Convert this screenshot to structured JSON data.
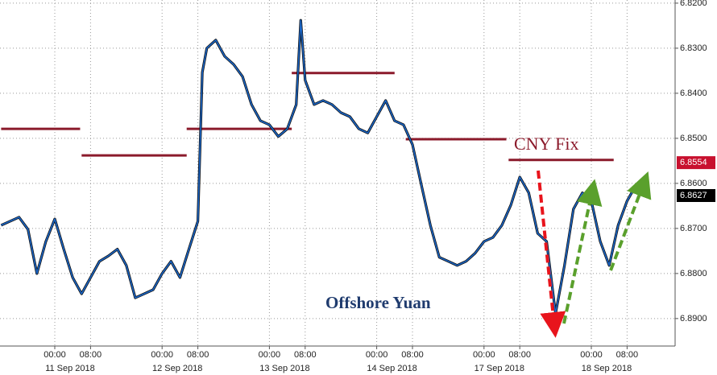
{
  "chart_data": {
    "type": "line",
    "annotations": {
      "series_label": "Offshore Yuan",
      "fix_label": "CNY Fix"
    },
    "x": [
      "2018-09-10 12:00",
      "2018-09-10 14:00",
      "2018-09-10 16:00",
      "2018-09-10 18:00",
      "2018-09-10 20:00",
      "2018-09-10 22:00",
      "2018-09-11 00:00",
      "2018-09-11 02:00",
      "2018-09-11 04:00",
      "2018-09-11 06:00",
      "2018-09-11 08:00",
      "2018-09-11 10:00",
      "2018-09-11 12:00",
      "2018-09-11 14:00",
      "2018-09-11 16:00",
      "2018-09-11 18:00",
      "2018-09-11 20:00",
      "2018-09-11 22:00",
      "2018-09-12 00:00",
      "2018-09-12 02:00",
      "2018-09-12 04:00",
      "2018-09-12 06:00",
      "2018-09-12 08:00",
      "2018-09-12 09:00",
      "2018-09-12 10:00",
      "2018-09-12 12:00",
      "2018-09-12 14:00",
      "2018-09-12 16:00",
      "2018-09-12 18:00",
      "2018-09-12 20:00",
      "2018-09-12 22:00",
      "2018-09-13 00:00",
      "2018-09-13 02:00",
      "2018-09-13 04:00",
      "2018-09-13 06:00",
      "2018-09-13 07:00",
      "2018-09-13 08:00",
      "2018-09-13 10:00",
      "2018-09-13 12:00",
      "2018-09-13 14:00",
      "2018-09-13 16:00",
      "2018-09-13 18:00",
      "2018-09-13 20:00",
      "2018-09-13 22:00",
      "2018-09-14 00:00",
      "2018-09-14 02:00",
      "2018-09-14 04:00",
      "2018-09-14 06:00",
      "2018-09-14 08:00",
      "2018-09-14 10:00",
      "2018-09-14 12:00",
      "2018-09-14 14:00",
      "2018-09-14 16:00",
      "2018-09-14 18:00",
      "2018-09-14 20:00",
      "2018-09-14 22:00",
      "2018-09-17 00:00",
      "2018-09-17 02:00",
      "2018-09-17 04:00",
      "2018-09-17 06:00",
      "2018-09-17 08:00",
      "2018-09-17 10:00",
      "2018-09-17 12:00",
      "2018-09-17 14:00",
      "2018-09-17 16:00",
      "2018-09-17 18:00",
      "2018-09-17 20:00",
      "2018-09-17 22:00",
      "2018-09-18 00:00",
      "2018-09-18 02:00",
      "2018-09-18 04:00",
      "2018-09-18 06:00",
      "2018-09-18 08:00",
      "2018-09-18 10:00"
    ],
    "values": [
      6.8693,
      6.8684,
      6.8675,
      6.8702,
      6.88,
      6.8729,
      6.8679,
      6.8746,
      6.8809,
      6.8845,
      6.8809,
      6.8773,
      6.8761,
      6.8746,
      6.8782,
      6.8854,
      6.8845,
      6.8836,
      6.88,
      6.8773,
      6.8809,
      6.8746,
      6.8684,
      6.8354,
      6.83,
      6.8282,
      6.8318,
      6.8336,
      6.8363,
      6.8425,
      6.8461,
      6.847,
      6.8496,
      6.8479,
      6.8425,
      6.8238,
      6.8371,
      6.8425,
      6.8416,
      6.8425,
      6.8443,
      6.8452,
      6.8479,
      6.8488,
      6.8452,
      6.8416,
      6.8461,
      6.847,
      6.8514,
      6.8604,
      6.8693,
      6.8764,
      6.8773,
      6.8782,
      6.8773,
      6.8755,
      6.8729,
      6.872,
      6.8693,
      6.8648,
      6.8586,
      6.8621,
      6.8711,
      6.8729,
      6.8889,
      6.8782,
      6.8657,
      6.8621,
      6.8639,
      6.8729,
      6.8782,
      6.8693,
      6.8639,
      6.8604
    ],
    "color": "#1a66c8",
    "fix_lines": {
      "from": [
        "2018-09-10 12:00",
        "2018-09-11 06:00",
        "2018-09-12 05:30",
        "2018-09-13 05:00",
        "2018-09-14 06:30",
        "2018-09-17 05:30"
      ],
      "to": [
        "2018-09-11 05:40",
        "2018-09-12 05:30",
        "2018-09-13 05:00",
        "2018-09-14 04:00",
        "2018-09-17 05:00",
        "2018-09-18 05:00"
      ],
      "values": [
        6.8479,
        6.8538,
        6.8479,
        6.8355,
        6.8502,
        6.8548
      ],
      "color": "#8b1a2b"
    },
    "price_markers": [
      {
        "value": 6.8554,
        "color": "#c8102e"
      },
      {
        "value": 6.8627,
        "color": "#000000"
      }
    ],
    "ylim": [
      6.8193,
      6.8961
    ],
    "y_inverted": true,
    "yticks": [
      {
        "value": 6.82,
        "label": "6.8200"
      },
      {
        "value": 6.83,
        "label": "6.8300"
      },
      {
        "value": 6.84,
        "label": "6.8400"
      },
      {
        "value": 6.85,
        "label": "6.8500"
      },
      {
        "value": 6.86,
        "label": "6.8600"
      },
      {
        "value": 6.87,
        "label": "6.8700"
      },
      {
        "value": 6.88,
        "label": "6.8800"
      },
      {
        "value": 6.89,
        "label": "6.8900"
      }
    ],
    "xticks": [
      {
        "value": "2018-09-11 00:00",
        "label": "00:00"
      },
      {
        "value": "2018-09-11 08:00",
        "label": "08:00"
      },
      {
        "value": "2018-09-12 00:00",
        "label": "00:00"
      },
      {
        "value": "2018-09-12 08:00",
        "label": "08:00"
      },
      {
        "value": "2018-09-13 00:00",
        "label": "00:00"
      },
      {
        "value": "2018-09-13 08:00",
        "label": "08:00"
      },
      {
        "value": "2018-09-14 00:00",
        "label": "00:00"
      },
      {
        "value": "2018-09-14 08:00",
        "label": "08:00"
      },
      {
        "value": "2018-09-17 00:00",
        "label": "00:00"
      },
      {
        "value": "2018-09-17 08:00",
        "label": "08:00"
      },
      {
        "value": "2018-09-18 00:00",
        "label": "00:00"
      },
      {
        "value": "2018-09-18 08:00",
        "label": "08:00"
      }
    ],
    "date_labels": [
      {
        "value": "2018-09-11",
        "label": "11 Sep 2018"
      },
      {
        "value": "2018-09-12",
        "label": "12 Sep 2018"
      },
      {
        "value": "2018-09-13",
        "label": "13 Sep 2018"
      },
      {
        "value": "2018-09-14",
        "label": "14 Sep 2018"
      },
      {
        "value": "2018-09-17",
        "label": "17 Sep 2018"
      },
      {
        "value": "2018-09-18",
        "label": "18 Sep 2018"
      }
    ],
    "grid": true
  }
}
